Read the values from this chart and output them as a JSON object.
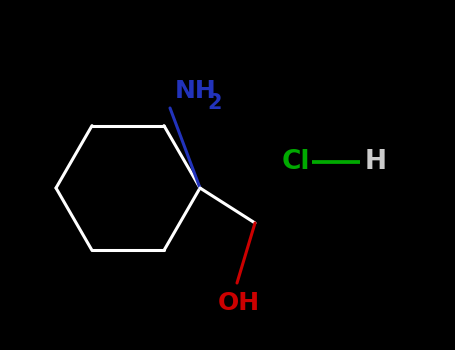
{
  "bg_color": "#000000",
  "bond_color": "#ffffff",
  "nh2_color": "#2233bb",
  "oh_color": "#cc0000",
  "cl_color": "#00aa00",
  "hcl_bond_color": "#00aa00",
  "h_color": "#cccccc",
  "bond_width": 2.2,
  "font_size": 15,
  "fig_width": 4.55,
  "fig_height": 3.5,
  "dpi": 100,
  "xlim": [
    0,
    455
  ],
  "ylim": [
    0,
    350
  ]
}
